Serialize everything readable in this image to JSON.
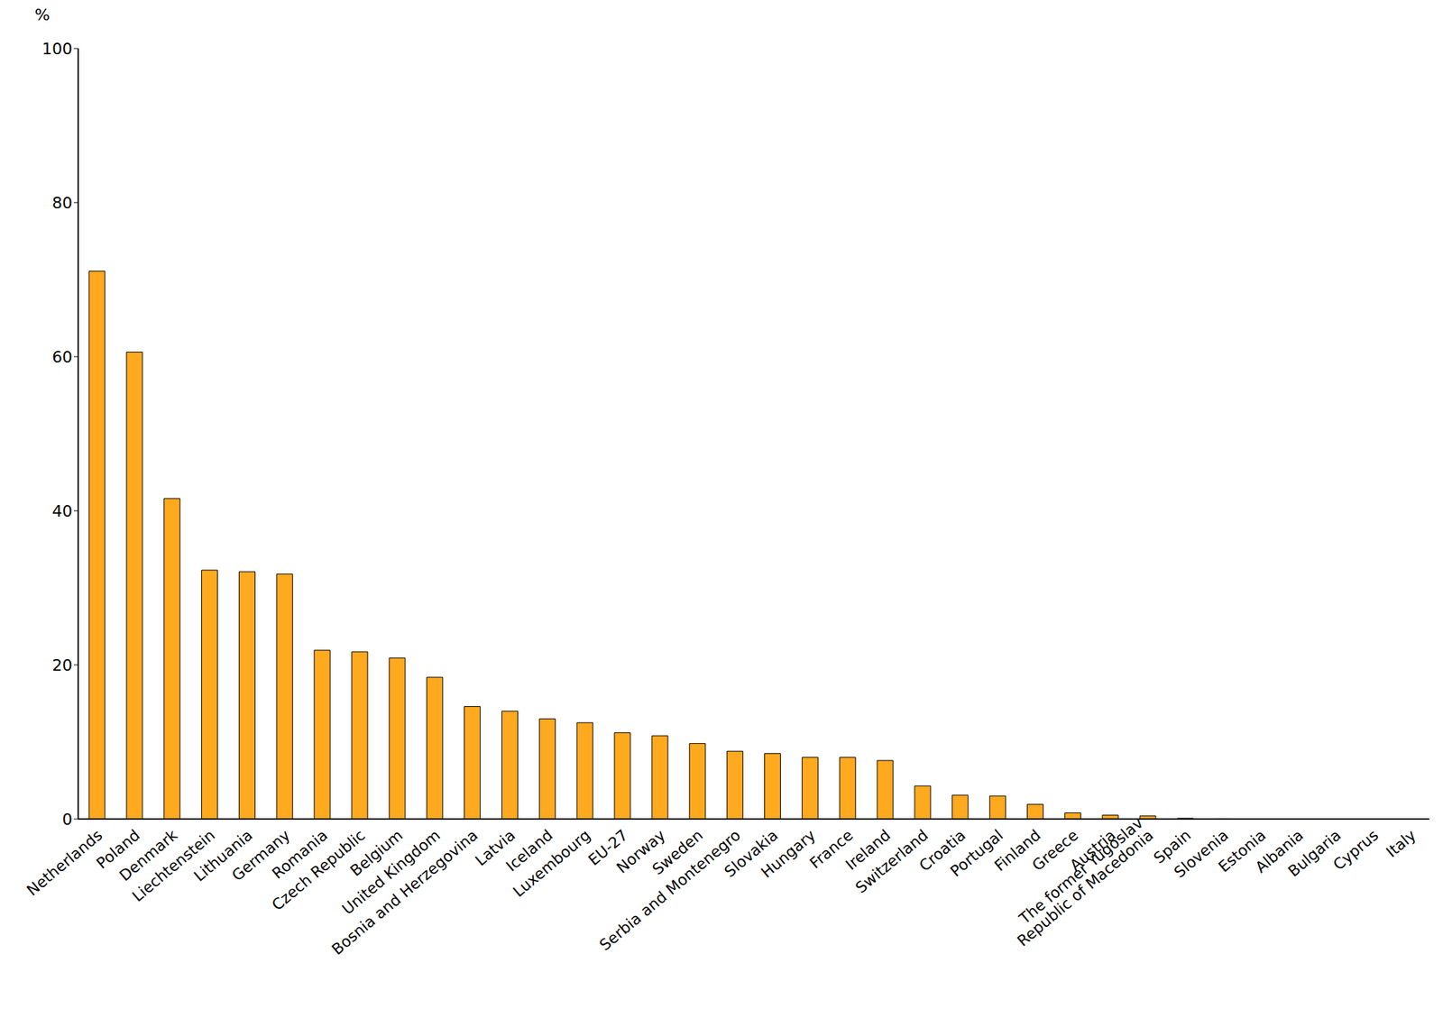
{
  "chart_data": {
    "type": "bar",
    "ylabel": "%",
    "categories": [
      "Netherlands",
      "Poland",
      "Denmark",
      "Liechtenstein",
      "Lithuania",
      "Germany",
      "Romania",
      "Czech Republic",
      "Belgium",
      "United Kingdom",
      "Bosnia and Herzegovina",
      "Latvia",
      "Iceland",
      "Luxembourg",
      "EU-27",
      "Norway",
      "Sweden",
      "Serbia and Montenegro",
      "Slovakia",
      "Hungary",
      "France",
      "Ireland",
      "Switzerland",
      "Croatia",
      "Portugal",
      "Finland",
      "Greece",
      "Austria",
      "The former Yugoslav\nRepublic of Macedonia",
      "Spain",
      "Slovenia",
      "Estonia",
      "Albania",
      "Bulgaria",
      "Cyprus",
      "Italy"
    ],
    "values": [
      71.1,
      60.6,
      41.6,
      32.3,
      32.1,
      31.8,
      21.9,
      21.7,
      20.9,
      18.4,
      14.6,
      14.0,
      13.0,
      12.5,
      11.2,
      10.8,
      9.8,
      8.8,
      8.5,
      8.0,
      8.0,
      7.6,
      4.3,
      3.1,
      3.0,
      1.9,
      0.8,
      0.5,
      0.4,
      0.1,
      0.05,
      0,
      0,
      0,
      0,
      0
    ],
    "color": "#ffa91f",
    "ylim": [
      0,
      100
    ],
    "yticks": [
      0,
      20,
      40,
      60,
      80,
      100
    ],
    "grid": false
  }
}
